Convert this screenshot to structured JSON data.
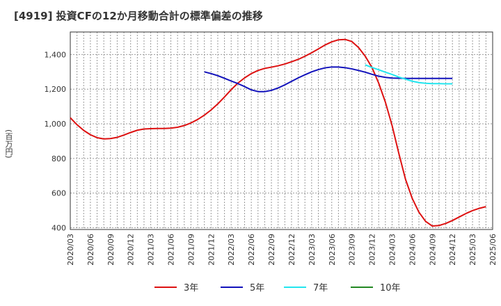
{
  "header": {
    "title": "[4919]  投資CFの12か月移動合計の標準偏差の推移"
  },
  "chart_data": {
    "type": "line",
    "title": "[4919]  投資CFの12か月移動合計の標準偏差の推移",
    "ylabel": "(百万円)",
    "xlabel": "",
    "ylim": [
      390,
      1530
    ],
    "yticks": [
      400,
      600,
      800,
      1000,
      1200,
      1400
    ],
    "ytick_labels": [
      "400",
      "600",
      "800",
      "1,000",
      "1,200",
      "1,400"
    ],
    "xticks": [
      "2020/03",
      "2020/06",
      "2020/09",
      "2020/12",
      "2021/03",
      "2021/06",
      "2021/09",
      "2021/12",
      "2022/03",
      "2022/06",
      "2022/09",
      "2022/12",
      "2023/03",
      "2023/06",
      "2023/09",
      "2023/12",
      "2024/03",
      "2024/06",
      "2024/09",
      "2024/12",
      "2025/03",
      "2025/06"
    ],
    "grid": true,
    "legend_position": "bottom",
    "series": [
      {
        "name": "3年",
        "color": "#dd1111",
        "start": "2020/03",
        "values": [
          1035,
          995,
          962,
          937,
          920,
          913,
          915,
          922,
          935,
          950,
          963,
          970,
          972,
          973,
          973,
          975,
          980,
          990,
          1005,
          1025,
          1050,
          1080,
          1115,
          1155,
          1197,
          1235,
          1265,
          1290,
          1308,
          1320,
          1327,
          1335,
          1345,
          1358,
          1372,
          1390,
          1410,
          1432,
          1455,
          1473,
          1485,
          1487,
          1475,
          1440,
          1390,
          1325,
          1235,
          1125,
          990,
          830,
          680,
          570,
          490,
          437,
          410,
          413,
          425,
          442,
          462,
          482,
          499,
          512,
          522
        ]
      },
      {
        "name": "5年",
        "color": "#1111bb",
        "start": "2021/11",
        "values": [
          1300,
          1290,
          1278,
          1263,
          1247,
          1232,
          1215,
          1196,
          1186,
          1186,
          1193,
          1207,
          1225,
          1245,
          1265,
          1283,
          1300,
          1313,
          1323,
          1328,
          1328,
          1324,
          1317,
          1308,
          1298,
          1286,
          1275,
          1268,
          1264,
          1263,
          1262,
          1262,
          1262,
          1262,
          1262,
          1262,
          1262,
          1262
        ]
      },
      {
        "name": "7年",
        "color": "#22e5ee",
        "start": "2023/11",
        "values": [
          1340,
          1325,
          1312,
          1298,
          1285,
          1270,
          1258,
          1246,
          1238,
          1234,
          1232,
          1232,
          1231,
          1231
        ]
      },
      {
        "name": "10年",
        "color": "#228822",
        "start": "2024/12",
        "values": []
      }
    ]
  }
}
